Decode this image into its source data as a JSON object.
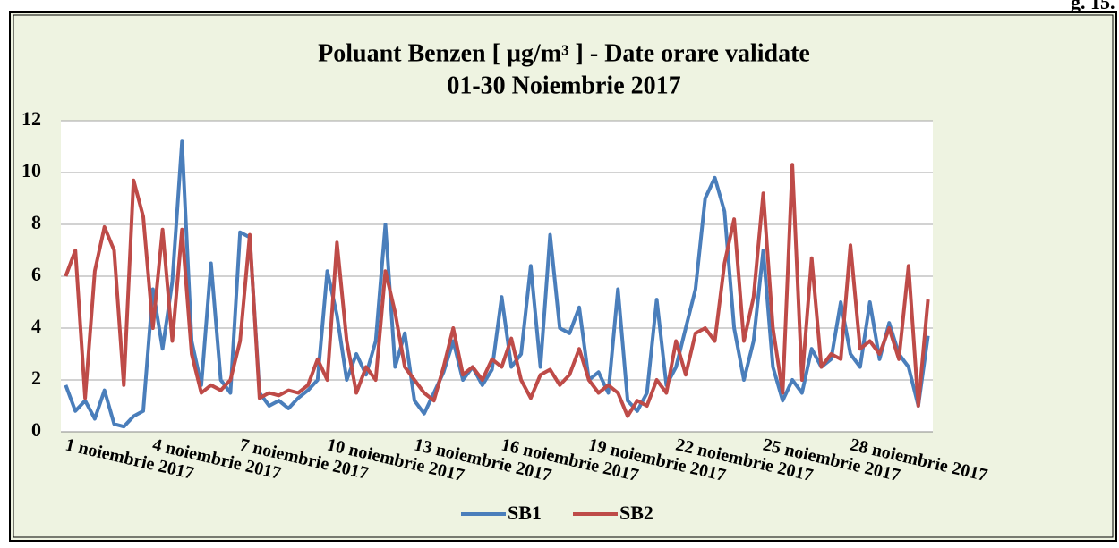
{
  "page_note": "g. 15.",
  "chart_data": {
    "type": "line",
    "title": "Poluant Benzen [ µg/m³ ] - Date orare validate",
    "subtitle": "01-30 Noiembrie 2017",
    "categories": [
      "1 noiembrie 2017",
      null,
      null,
      null,
      null,
      null,
      null,
      null,
      null,
      "4 noiembrie 2017",
      null,
      null,
      null,
      null,
      null,
      null,
      null,
      null,
      "7 noiembrie 2017",
      null,
      null,
      null,
      null,
      null,
      null,
      null,
      null,
      "10 noiembrie 2017",
      null,
      null,
      null,
      null,
      null,
      null,
      null,
      null,
      "13 noiembrie 2017",
      null,
      null,
      null,
      null,
      null,
      null,
      null,
      null,
      "16 noiembrie 2017",
      null,
      null,
      null,
      null,
      null,
      null,
      null,
      null,
      "19 noiembrie 2017",
      null,
      null,
      null,
      null,
      null,
      null,
      null,
      null,
      "22 noiembrie 2017",
      null,
      null,
      null,
      null,
      null,
      null,
      null,
      null,
      "25 noiembrie 2017",
      null,
      null,
      null,
      null,
      null,
      null,
      null,
      null,
      "28 noiembrie 2017",
      null,
      null,
      null,
      null,
      null,
      null,
      null,
      null
    ],
    "series": [
      {
        "name": "SB1",
        "color": "#4a7ebb",
        "values": [
          1.8,
          0.8,
          1.2,
          0.5,
          1.6,
          0.3,
          0.2,
          0.6,
          0.8,
          5.5,
          3.2,
          5.8,
          11.2,
          3.5,
          1.8,
          6.5,
          2.0,
          1.5,
          7.7,
          7.5,
          1.5,
          1.0,
          1.2,
          0.9,
          1.3,
          1.6,
          2.0,
          6.2,
          4.5,
          2.0,
          3.0,
          2.2,
          3.5,
          8.0,
          2.5,
          3.8,
          1.2,
          0.7,
          1.5,
          2.3,
          3.5,
          2.0,
          2.5,
          1.8,
          2.4,
          5.2,
          2.5,
          3.0,
          6.4,
          2.5,
          7.6,
          4.0,
          3.8,
          4.8,
          2.0,
          2.3,
          1.5,
          5.5,
          1.2,
          0.8,
          1.5,
          5.1,
          1.8,
          2.5,
          4.0,
          5.5,
          9.0,
          9.8,
          8.5,
          4.0,
          2.0,
          3.5,
          7.0,
          2.5,
          1.2,
          2.0,
          1.5,
          3.2,
          2.5,
          2.8,
          5.0,
          3.0,
          2.5,
          5.0,
          2.8,
          4.2,
          3.0,
          2.5,
          1.0,
          3.7
        ]
      },
      {
        "name": "SB2",
        "color": "#be4b48",
        "values": [
          6.0,
          7.0,
          1.3,
          6.2,
          7.9,
          7.0,
          1.8,
          9.7,
          8.3,
          4.0,
          7.8,
          3.5,
          7.8,
          3.0,
          1.5,
          1.8,
          1.6,
          2.0,
          3.5,
          7.6,
          1.3,
          1.5,
          1.4,
          1.6,
          1.5,
          1.8,
          2.8,
          2.0,
          7.3,
          3.5,
          1.5,
          2.5,
          2.0,
          6.2,
          4.6,
          2.5,
          2.0,
          1.5,
          1.2,
          2.5,
          4.0,
          2.2,
          2.5,
          2.0,
          2.8,
          2.5,
          3.6,
          2.0,
          1.3,
          2.2,
          2.4,
          1.8,
          2.2,
          3.2,
          2.0,
          1.5,
          1.8,
          1.5,
          0.6,
          1.2,
          1.0,
          2.0,
          1.5,
          3.5,
          2.2,
          3.8,
          4.0,
          3.5,
          6.5,
          8.2,
          3.5,
          5.2,
          9.2,
          4.0,
          1.5,
          10.3,
          2.0,
          6.7,
          2.5,
          3.0,
          2.8,
          7.2,
          3.2,
          3.5,
          3.0,
          4.0,
          2.8,
          6.4,
          1.0,
          5.1
        ]
      }
    ],
    "ylim": [
      0,
      12
    ],
    "yticks": [
      0,
      2,
      4,
      6,
      8,
      10,
      12
    ],
    "grid": true,
    "legend": "bottom"
  }
}
